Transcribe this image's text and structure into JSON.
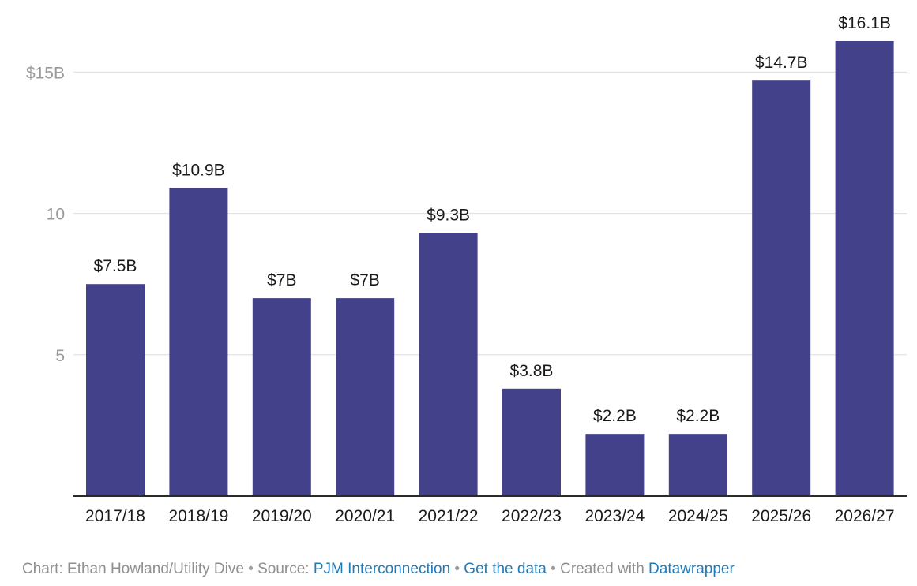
{
  "chart_data": {
    "type": "bar",
    "categories": [
      "2017/18",
      "2018/19",
      "2019/20",
      "2020/21",
      "2021/22",
      "2022/23",
      "2023/24",
      "2024/25",
      "2025/26",
      "2026/27"
    ],
    "values": [
      7.5,
      10.9,
      7.0,
      7.0,
      9.3,
      3.8,
      2.2,
      2.2,
      14.7,
      16.1
    ],
    "data_labels": [
      "$7.5B",
      "$10.9B",
      "$7B",
      "$7B",
      "$9.3B",
      "$3.8B",
      "$2.2B",
      "$2.2B",
      "$14.7B",
      "$16.1B"
    ],
    "y_ticks": [
      {
        "value": 5,
        "label": "5"
      },
      {
        "value": 10,
        "label": "10"
      },
      {
        "value": 15,
        "label": "$15B"
      }
    ],
    "ylim": [
      0,
      16.1
    ],
    "grid": true,
    "title": "",
    "xlabel": "",
    "ylabel": "",
    "bar_color": "#42418a"
  },
  "footer": {
    "chart_credit": "Chart: Ethan Howland/Utility Dive",
    "separator": "•",
    "source_prefix": "Source:",
    "source_link": "PJM Interconnection",
    "get_data": "Get the data",
    "created_with": "Created with",
    "datawrapper": "Datawrapper",
    "link_color": "#1f7ab8"
  }
}
